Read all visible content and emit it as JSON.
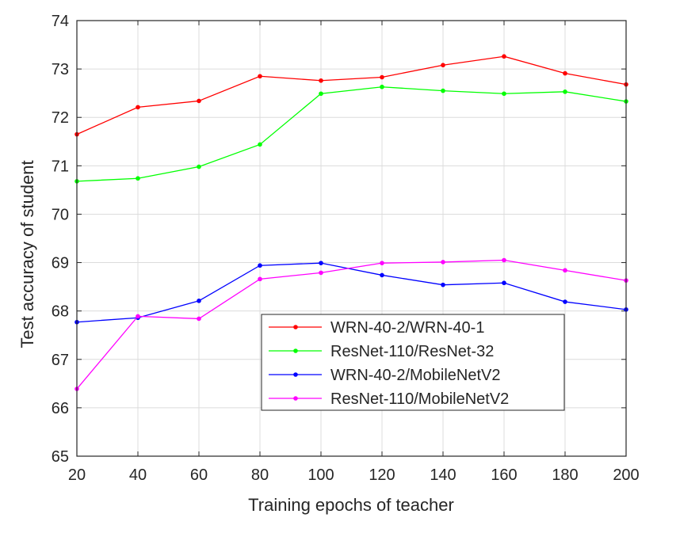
{
  "chart_data": {
    "type": "line",
    "title": "",
    "xlabel": "Training epochs of teacher",
    "ylabel": "Test accuracy of student",
    "xlim": [
      20,
      200
    ],
    "ylim": [
      65,
      74
    ],
    "x_ticks": [
      20,
      40,
      60,
      80,
      100,
      120,
      140,
      160,
      180,
      200
    ],
    "y_ticks": [
      65,
      66,
      67,
      68,
      69,
      70,
      71,
      72,
      73,
      74
    ],
    "grid": true,
    "legend_position": "lower-center",
    "x": [
      20,
      40,
      60,
      80,
      100,
      120,
      140,
      160,
      180,
      200
    ],
    "series": [
      {
        "name": "WRN-40-2/WRN-40-1",
        "color": "#ff0000",
        "values": [
          71.65,
          72.21,
          72.34,
          72.85,
          72.76,
          72.83,
          73.08,
          73.26,
          72.91,
          72.68
        ]
      },
      {
        "name": "ResNet-110/ResNet-32",
        "color": "#00ff00",
        "values": [
          70.68,
          70.74,
          70.98,
          71.44,
          72.49,
          72.63,
          72.55,
          72.49,
          72.53,
          72.33
        ]
      },
      {
        "name": "WRN-40-2/MobileNetV2",
        "color": "#0000ff",
        "values": [
          67.77,
          67.86,
          68.21,
          68.94,
          68.99,
          68.74,
          68.54,
          68.58,
          68.19,
          68.03
        ]
      },
      {
        "name": "ResNet-110/MobileNetV2",
        "color": "#ff00ff",
        "values": [
          66.39,
          67.89,
          67.84,
          68.66,
          68.79,
          68.99,
          69.01,
          69.05,
          68.84,
          68.63
        ]
      }
    ]
  }
}
